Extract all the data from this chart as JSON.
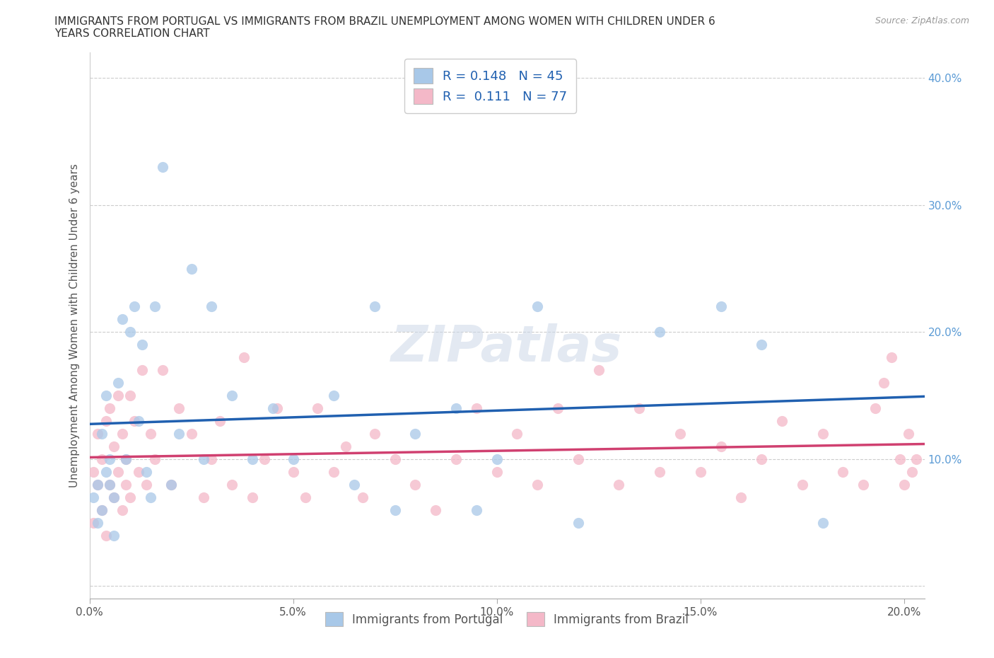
{
  "title_line1": "IMMIGRANTS FROM PORTUGAL VS IMMIGRANTS FROM BRAZIL UNEMPLOYMENT AMONG WOMEN WITH CHILDREN UNDER 6",
  "title_line2": "YEARS CORRELATION CHART",
  "source": "Source: ZipAtlas.com",
  "ylabel": "Unemployment Among Women with Children Under 6 years",
  "xlim": [
    0.0,
    0.205
  ],
  "ylim": [
    -0.01,
    0.42
  ],
  "xticks": [
    0.0,
    0.05,
    0.1,
    0.15,
    0.2
  ],
  "yticks": [
    0.0,
    0.1,
    0.2,
    0.3,
    0.4
  ],
  "xtick_labels": [
    "0.0%",
    "5.0%",
    "10.0%",
    "15.0%",
    "20.0%"
  ],
  "ytick_labels_right": [
    "",
    "10.0%",
    "20.0%",
    "30.0%",
    "40.0%"
  ],
  "color_portugal": "#a8c8e8",
  "color_brazil": "#f4b8c8",
  "line_color_portugal": "#2060b0",
  "line_color_brazil": "#d04070",
  "R_portugal": 0.148,
  "N_portugal": 45,
  "R_brazil": 0.111,
  "N_brazil": 77,
  "watermark": "ZIPatlas",
  "portugal_x": [
    0.001,
    0.002,
    0.002,
    0.003,
    0.003,
    0.004,
    0.004,
    0.005,
    0.005,
    0.006,
    0.006,
    0.007,
    0.008,
    0.009,
    0.01,
    0.011,
    0.012,
    0.013,
    0.014,
    0.015,
    0.016,
    0.018,
    0.02,
    0.022,
    0.025,
    0.028,
    0.03,
    0.035,
    0.04,
    0.045,
    0.05,
    0.06,
    0.065,
    0.07,
    0.075,
    0.08,
    0.09,
    0.095,
    0.1,
    0.11,
    0.12,
    0.14,
    0.155,
    0.165,
    0.18
  ],
  "portugal_y": [
    0.07,
    0.08,
    0.05,
    0.12,
    0.06,
    0.09,
    0.15,
    0.08,
    0.1,
    0.04,
    0.07,
    0.16,
    0.21,
    0.1,
    0.2,
    0.22,
    0.13,
    0.19,
    0.09,
    0.07,
    0.22,
    0.33,
    0.08,
    0.12,
    0.25,
    0.1,
    0.22,
    0.15,
    0.1,
    0.14,
    0.1,
    0.15,
    0.08,
    0.22,
    0.06,
    0.12,
    0.14,
    0.06,
    0.1,
    0.22,
    0.05,
    0.2,
    0.22,
    0.19,
    0.05
  ],
  "brazil_x": [
    0.001,
    0.001,
    0.002,
    0.002,
    0.003,
    0.003,
    0.004,
    0.004,
    0.005,
    0.005,
    0.006,
    0.006,
    0.007,
    0.007,
    0.008,
    0.008,
    0.009,
    0.009,
    0.01,
    0.01,
    0.011,
    0.012,
    0.013,
    0.014,
    0.015,
    0.016,
    0.018,
    0.02,
    0.022,
    0.025,
    0.028,
    0.03,
    0.032,
    0.035,
    0.038,
    0.04,
    0.043,
    0.046,
    0.05,
    0.053,
    0.056,
    0.06,
    0.063,
    0.067,
    0.07,
    0.075,
    0.08,
    0.085,
    0.09,
    0.095,
    0.1,
    0.105,
    0.11,
    0.115,
    0.12,
    0.125,
    0.13,
    0.135,
    0.14,
    0.145,
    0.15,
    0.155,
    0.16,
    0.165,
    0.17,
    0.175,
    0.18,
    0.185,
    0.19,
    0.193,
    0.195,
    0.197,
    0.199,
    0.2,
    0.201,
    0.202,
    0.203
  ],
  "brazil_y": [
    0.05,
    0.09,
    0.08,
    0.12,
    0.06,
    0.1,
    0.04,
    0.13,
    0.08,
    0.14,
    0.07,
    0.11,
    0.09,
    0.15,
    0.06,
    0.12,
    0.1,
    0.08,
    0.15,
    0.07,
    0.13,
    0.09,
    0.17,
    0.08,
    0.12,
    0.1,
    0.17,
    0.08,
    0.14,
    0.12,
    0.07,
    0.1,
    0.13,
    0.08,
    0.18,
    0.07,
    0.1,
    0.14,
    0.09,
    0.07,
    0.14,
    0.09,
    0.11,
    0.07,
    0.12,
    0.1,
    0.08,
    0.06,
    0.1,
    0.14,
    0.09,
    0.12,
    0.08,
    0.14,
    0.1,
    0.17,
    0.08,
    0.14,
    0.09,
    0.12,
    0.09,
    0.11,
    0.07,
    0.1,
    0.13,
    0.08,
    0.12,
    0.09,
    0.08,
    0.14,
    0.16,
    0.18,
    0.1,
    0.08,
    0.12,
    0.09,
    0.1
  ]
}
